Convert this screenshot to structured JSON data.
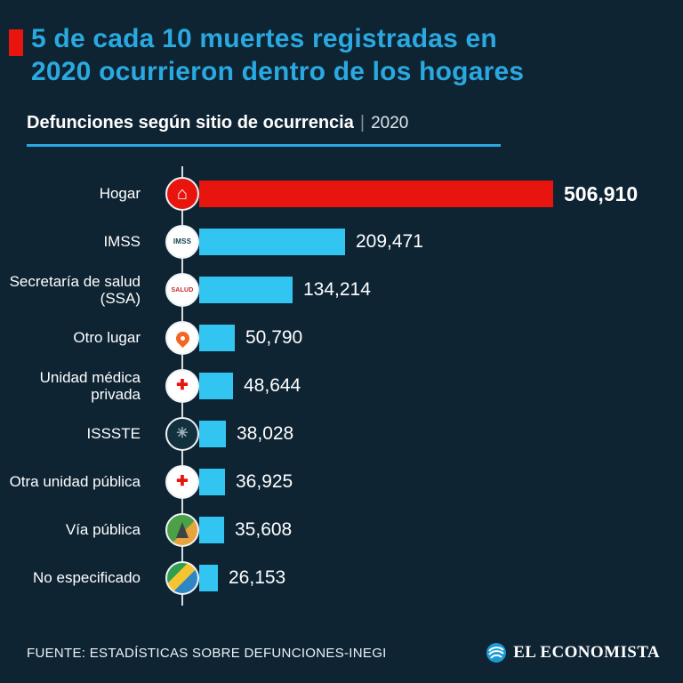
{
  "page": {
    "background": "#0e2433"
  },
  "header": {
    "bullet_color": "#e8150f",
    "title": "5 de cada 10 muertes registradas en\n2020 ocurrieron dentro de los hogares",
    "title_color": "#2aa9e0"
  },
  "subtitle": {
    "main": "Defunciones según sitio de ocurrencia",
    "separator": "|",
    "year": "2020"
  },
  "chart_data": {
    "type": "bar",
    "orientation": "horizontal",
    "title": "Defunciones según sitio de ocurrencia",
    "year": "2020",
    "categories": [
      "Hogar",
      "IMSS",
      "Secretaría de salud (SSA)",
      "Otro lugar",
      "Unidad médica privada",
      "ISSSTE",
      "Otra unidad pública",
      "Vía pública",
      "No especificado"
    ],
    "values": [
      506910,
      209471,
      134214,
      50790,
      48644,
      38028,
      36925,
      35608,
      26153
    ],
    "value_labels": [
      "506,910",
      "209,471",
      "134,214",
      "50,790",
      "48,644",
      "38,028",
      "36,925",
      "35,608",
      "26,153"
    ],
    "bar_colors": [
      "#e8150f",
      "#33c5f2",
      "#33c5f2",
      "#33c5f2",
      "#33c5f2",
      "#33c5f2",
      "#33c5f2",
      "#33c5f2",
      "#33c5f2"
    ],
    "highlight_index": 0,
    "xlim": [
      0,
      506910
    ],
    "grid": false,
    "legend": false,
    "icons": [
      {
        "name": "house-icon",
        "shape": "glyph",
        "bg": "#e8150f",
        "fg": "#ffffff",
        "glyph": "⌂",
        "size": 20
      },
      {
        "name": "imss-logo-icon",
        "shape": "text",
        "bg": "#ffffff",
        "fg": "#14424f",
        "text": "IMSS",
        "size": 8
      },
      {
        "name": "salud-ssa-logo-icon",
        "shape": "text",
        "bg": "#ffffff",
        "fg": "#c1272d",
        "text": "SALUD",
        "size": 7
      },
      {
        "name": "location-pin-icon",
        "shape": "pin",
        "bg": "#ffffff",
        "fg": "#f26522"
      },
      {
        "name": "private-clinic-icon",
        "shape": "glyph",
        "bg": "#ffffff",
        "fg": "#e8150f",
        "glyph": "✚",
        "size": 16
      },
      {
        "name": "issste-logo-icon",
        "shape": "glyph",
        "bg": "#12303e",
        "fg": "#9fb3bd",
        "glyph": "✳",
        "size": 16
      },
      {
        "name": "public-clinic-icon",
        "shape": "glyph",
        "bg": "#ffffff",
        "fg": "#e8150f",
        "glyph": "✚",
        "size": 16
      },
      {
        "name": "road-icon",
        "shape": "road",
        "bg": "linear-gradient(135deg,#4aa147 0 55%,#e8a33d 55% 100%)"
      },
      {
        "name": "flag-icon",
        "shape": "flag",
        "bg": "linear-gradient(135deg,#2f9e4f 0 34%,#f4c431 34% 58%,#2f86c5 58% 100%)"
      }
    ]
  },
  "footer": {
    "source": "FUENTE: ESTADÍSTICAS SOBRE DEFUNCIONES-INEGI",
    "brand": "EL ECONOMISTA"
  }
}
